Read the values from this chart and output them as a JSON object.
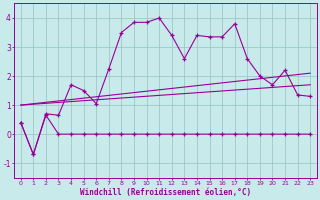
{
  "xlabel": "Windchill (Refroidissement éolien,°C)",
  "xlim": [
    -0.5,
    23.5
  ],
  "ylim": [
    -1.5,
    4.5
  ],
  "yticks": [
    -1,
    0,
    1,
    2,
    3,
    4
  ],
  "xticks": [
    0,
    1,
    2,
    3,
    4,
    5,
    6,
    7,
    8,
    9,
    10,
    11,
    12,
    13,
    14,
    15,
    16,
    17,
    18,
    19,
    20,
    21,
    22,
    23
  ],
  "bg_color": "#c8eaea",
  "line_color": "#990099",
  "grid_color": "#9ec8c8",
  "series1_x": [
    0,
    1,
    2,
    3,
    4,
    5,
    6,
    7,
    8,
    9,
    10,
    11,
    12,
    13,
    14,
    15,
    16,
    17,
    18,
    19,
    20,
    21,
    22,
    23
  ],
  "series1_y": [
    0.4,
    -0.7,
    0.7,
    0.65,
    1.7,
    1.5,
    1.05,
    2.25,
    3.5,
    3.85,
    3.85,
    4.0,
    3.4,
    2.6,
    3.4,
    3.35,
    3.35,
    3.8,
    2.6,
    2.0,
    1.7,
    2.2,
    1.35,
    1.3
  ],
  "series2_x": [
    0,
    1,
    2,
    3,
    4,
    5,
    6,
    7,
    8,
    9,
    10,
    11,
    12,
    13,
    14,
    15,
    16,
    17,
    18,
    19,
    20,
    21,
    22,
    23
  ],
  "series2_y": [
    0.4,
    -0.7,
    0.65,
    0.0,
    0.0,
    0.0,
    0.0,
    0.0,
    0.0,
    0.0,
    0.0,
    0.0,
    0.0,
    0.0,
    0.0,
    0.0,
    0.0,
    0.0,
    0.0,
    0.0,
    0.0,
    0.0,
    0.0,
    0.0
  ],
  "series3_x": [
    0,
    23
  ],
  "series3_y": [
    1.0,
    1.7
  ],
  "series4_x": [
    0,
    23
  ],
  "series4_y": [
    1.0,
    2.1
  ]
}
